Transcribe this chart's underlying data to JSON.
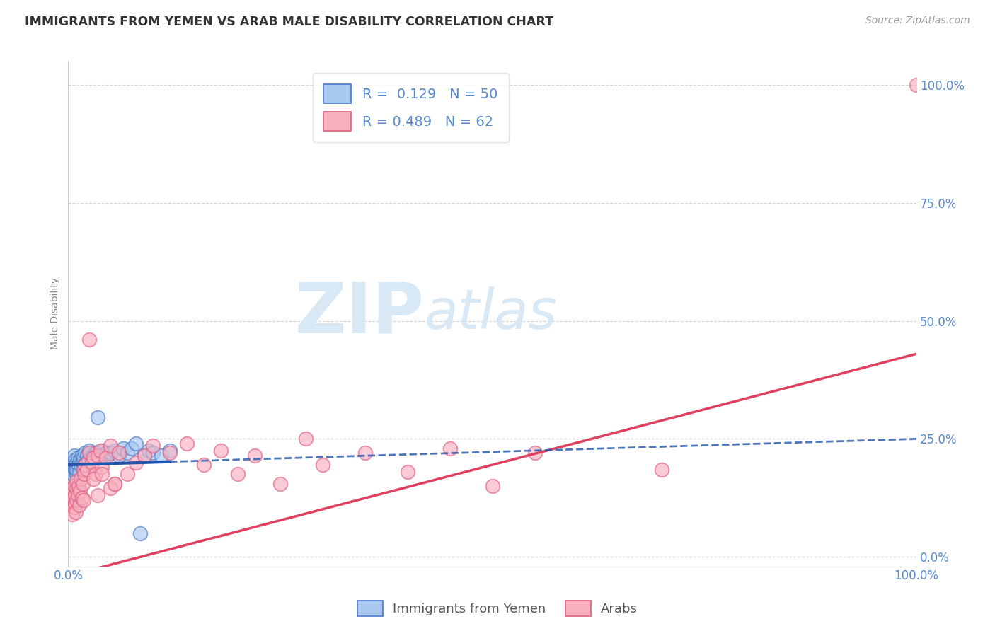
{
  "title": "IMMIGRANTS FROM YEMEN VS ARAB MALE DISABILITY CORRELATION CHART",
  "source": "Source: ZipAtlas.com",
  "xlabel": "",
  "ylabel": "Male Disability",
  "xlim": [
    0.0,
    1.0
  ],
  "ylim": [
    -0.02,
    1.05
  ],
  "ytick_labels": [
    "0.0%",
    "25.0%",
    "50.0%",
    "75.0%",
    "100.0%"
  ],
  "ytick_values": [
    0.0,
    0.25,
    0.5,
    0.75,
    1.0
  ],
  "xtick_labels": [
    "0.0%",
    "100.0%"
  ],
  "xtick_values": [
    0.0,
    1.0
  ],
  "blue_R": 0.129,
  "blue_N": 50,
  "pink_R": 0.489,
  "pink_N": 62,
  "blue_color": "#a8c8f0",
  "pink_color": "#f8b0c0",
  "blue_edge_color": "#4878c8",
  "pink_edge_color": "#e06080",
  "blue_line_color": "#2255aa",
  "pink_line_color": "#e04060",
  "title_color": "#333333",
  "source_color": "#999999",
  "axis_label_color": "#5588cc",
  "watermark_color": "#d8e8f5",
  "blue_scatter_x": [
    0.003,
    0.004,
    0.005,
    0.005,
    0.006,
    0.007,
    0.007,
    0.008,
    0.008,
    0.009,
    0.01,
    0.01,
    0.01,
    0.011,
    0.012,
    0.013,
    0.014,
    0.015,
    0.016,
    0.017,
    0.018,
    0.018,
    0.019,
    0.02,
    0.021,
    0.022,
    0.024,
    0.025,
    0.027,
    0.028,
    0.03,
    0.032,
    0.035,
    0.038,
    0.04,
    0.042,
    0.045,
    0.05,
    0.055,
    0.06,
    0.065,
    0.07,
    0.075,
    0.08,
    0.085,
    0.09,
    0.095,
    0.1,
    0.11,
    0.12
  ],
  "blue_scatter_y": [
    0.18,
    0.195,
    0.185,
    0.175,
    0.2,
    0.19,
    0.215,
    0.185,
    0.205,
    0.195,
    0.175,
    0.2,
    0.185,
    0.21,
    0.195,
    0.18,
    0.205,
    0.195,
    0.215,
    0.2,
    0.185,
    0.21,
    0.195,
    0.22,
    0.2,
    0.215,
    0.205,
    0.225,
    0.21,
    0.195,
    0.215,
    0.22,
    0.295,
    0.215,
    0.225,
    0.21,
    0.22,
    0.22,
    0.225,
    0.215,
    0.23,
    0.22,
    0.23,
    0.24,
    0.05,
    0.215,
    0.225,
    0.22,
    0.215,
    0.225
  ],
  "pink_scatter_x": [
    0.003,
    0.004,
    0.005,
    0.005,
    0.006,
    0.007,
    0.007,
    0.008,
    0.008,
    0.009,
    0.01,
    0.01,
    0.01,
    0.011,
    0.012,
    0.013,
    0.014,
    0.015,
    0.016,
    0.017,
    0.018,
    0.018,
    0.019,
    0.02,
    0.022,
    0.025,
    0.028,
    0.03,
    0.032,
    0.035,
    0.038,
    0.04,
    0.045,
    0.05,
    0.055,
    0.06,
    0.07,
    0.08,
    0.09,
    0.1,
    0.12,
    0.14,
    0.16,
    0.18,
    0.2,
    0.22,
    0.25,
    0.28,
    0.3,
    0.35,
    0.4,
    0.45,
    0.5,
    0.55,
    0.025,
    0.03,
    0.035,
    0.04,
    0.05,
    0.055,
    0.7,
    1.0
  ],
  "pink_scatter_y": [
    0.135,
    0.11,
    0.145,
    0.09,
    0.125,
    0.105,
    0.15,
    0.115,
    0.13,
    0.095,
    0.145,
    0.12,
    0.16,
    0.13,
    0.15,
    0.11,
    0.14,
    0.165,
    0.125,
    0.155,
    0.12,
    0.185,
    0.175,
    0.195,
    0.185,
    0.22,
    0.2,
    0.21,
    0.175,
    0.215,
    0.225,
    0.19,
    0.21,
    0.235,
    0.155,
    0.22,
    0.175,
    0.2,
    0.215,
    0.235,
    0.22,
    0.24,
    0.195,
    0.225,
    0.175,
    0.215,
    0.155,
    0.25,
    0.195,
    0.22,
    0.18,
    0.23,
    0.15,
    0.22,
    0.46,
    0.165,
    0.13,
    0.175,
    0.145,
    0.155,
    0.185,
    1.0
  ],
  "blue_line_intercept": 0.195,
  "blue_line_slope": 0.055,
  "pink_line_intercept": -0.04,
  "pink_line_slope": 0.47
}
